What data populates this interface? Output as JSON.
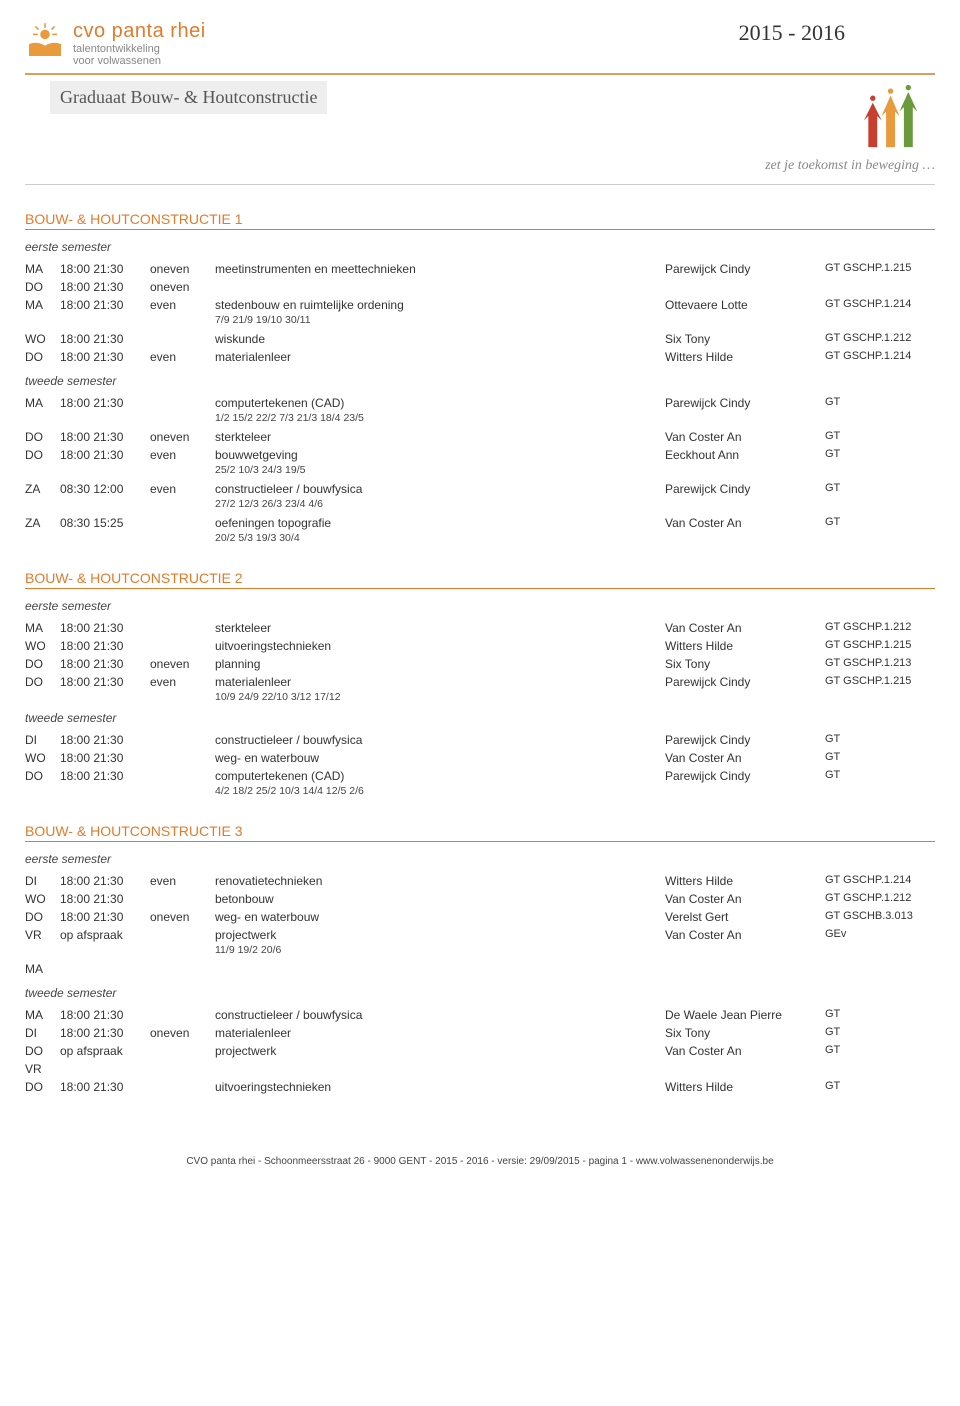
{
  "header": {
    "brand": "cvo panta rhei",
    "tag1": "talentontwikkeling",
    "tag2": "voor volwassenen",
    "year": "2015 - 2016",
    "course_title": "Graduaat Bouw- & Houtconstructie",
    "slogan": "zet je toekomst in beweging …"
  },
  "colors": {
    "orange": "#e17b2c",
    "grey": "#888"
  },
  "sections": [
    {
      "title": "BOUW- & HOUTCONSTRUCTIE 1",
      "semesters": [
        {
          "label": "eerste semester",
          "rows": [
            {
              "day": "MA",
              "time": "18:00 21:30",
              "parity": "oneven",
              "subject": "meetinstrumenten en meettechnieken",
              "teacher": "Parewijck Cindy",
              "code": "GT GSCHP.1.215"
            },
            {
              "day": "DO",
              "time": "18:00 21:30",
              "parity": "oneven",
              "subject": "",
              "teacher": "",
              "code": ""
            },
            {
              "day": "MA",
              "time": "18:00 21:30",
              "parity": "even",
              "subject": "stedenbouw en ruimtelijke ordening",
              "teacher": "Ottevaere Lotte",
              "code": "GT GSCHP.1.214",
              "dates": "7/9 21/9 19/10 30/11"
            },
            {
              "day": "WO",
              "time": "18:00 21:30",
              "parity": "",
              "subject": "wiskunde",
              "teacher": "Six Tony",
              "code": "GT GSCHP.1.212"
            },
            {
              "day": "DO",
              "time": "18:00 21:30",
              "parity": "even",
              "subject": "materialenleer",
              "teacher": "Witters Hilde",
              "code": "GT GSCHP.1.214"
            }
          ]
        },
        {
          "label": "tweede semester",
          "rows": [
            {
              "day": "MA",
              "time": "18:00 21:30",
              "parity": "",
              "subject": "computertekenen (CAD)",
              "teacher": "Parewijck Cindy",
              "code": "GT",
              "dates": "1/2 15/2 22/2 7/3 21/3 18/4 23/5"
            },
            {
              "day": "DO",
              "time": "18:00 21:30",
              "parity": "oneven",
              "subject": "sterkteleer",
              "teacher": "Van Coster An",
              "code": "GT"
            },
            {
              "day": "DO",
              "time": "18:00 21:30",
              "parity": "even",
              "subject": "bouwwetgeving",
              "teacher": "Eeckhout Ann",
              "code": "GT",
              "dates": "25/2 10/3 24/3 19/5"
            },
            {
              "day": "ZA",
              "time": "08:30 12:00",
              "parity": "even",
              "subject": "constructieleer / bouwfysica",
              "teacher": "Parewijck Cindy",
              "code": "GT",
              "dates": "27/2 12/3 26/3 23/4 4/6"
            },
            {
              "day": "ZA",
              "time": "08:30 15:25",
              "parity": "",
              "subject": "oefeningen topografie",
              "teacher": "Van Coster An",
              "code": "GT",
              "dates": "20/2 5/3 19/3 30/4"
            }
          ]
        }
      ]
    },
    {
      "title": "BOUW- & HOUTCONSTRUCTIE 2",
      "semesters": [
        {
          "label": "eerste semester",
          "rows": [
            {
              "day": "MA",
              "time": "18:00 21:30",
              "parity": "",
              "subject": "sterkteleer",
              "teacher": "Van Coster An",
              "code": "GT GSCHP.1.212"
            },
            {
              "day": "WO",
              "time": "18:00 21:30",
              "parity": "",
              "subject": "uitvoeringstechnieken",
              "teacher": "Witters Hilde",
              "code": "GT GSCHP.1.215"
            },
            {
              "day": "DO",
              "time": "18:00 21:30",
              "parity": "oneven",
              "subject": "planning",
              "teacher": "Six Tony",
              "code": "GT GSCHP.1.213"
            },
            {
              "day": "DO",
              "time": "18:00 21:30",
              "parity": "even",
              "subject": "materialenleer",
              "teacher": "Parewijck Cindy",
              "code": "GT GSCHP.1.215",
              "dates": "10/9 24/9 22/10 3/12 17/12"
            }
          ]
        },
        {
          "label": "tweede semester",
          "rows": [
            {
              "day": "DI",
              "time": "18:00 21:30",
              "parity": "",
              "subject": "constructieleer / bouwfysica",
              "teacher": "Parewijck Cindy",
              "code": "GT"
            },
            {
              "day": "WO",
              "time": "18:00 21:30",
              "parity": "",
              "subject": "weg- en waterbouw",
              "teacher": "Van Coster An",
              "code": "GT"
            },
            {
              "day": "DO",
              "time": "18:00 21:30",
              "parity": "",
              "subject": "computertekenen (CAD)",
              "teacher": "Parewijck Cindy",
              "code": "GT",
              "dates": "4/2 18/2 25/2 10/3 14/4 12/5 2/6"
            }
          ]
        }
      ]
    },
    {
      "title": "BOUW- & HOUTCONSTRUCTIE 3",
      "semesters": [
        {
          "label": "eerste semester",
          "rows": [
            {
              "day": "DI",
              "time": "18:00 21:30",
              "parity": "even",
              "subject": "renovatietechnieken",
              "teacher": "Witters Hilde",
              "code": "GT GSCHP.1.214"
            },
            {
              "day": "WO",
              "time": "18:00 21:30",
              "parity": "",
              "subject": "betonbouw",
              "teacher": "Van Coster An",
              "code": "GT GSCHP.1.212"
            },
            {
              "day": "DO",
              "time": "18:00 21:30",
              "parity": "oneven",
              "subject": "weg- en waterbouw",
              "teacher": "Verelst Gert",
              "code": "GT GSCHB.3.013"
            },
            {
              "day": "VR",
              "time": "op afspraak",
              "parity": "",
              "subject": "projectwerk",
              "teacher": "Van Coster An",
              "code": "GEv",
              "dates": "11/9 19/2 20/6"
            },
            {
              "day": "MA",
              "time": "",
              "parity": "",
              "subject": "",
              "teacher": "",
              "code": ""
            }
          ]
        },
        {
          "label": "tweede semester",
          "rows": [
            {
              "day": "MA",
              "time": "18:00 21:30",
              "parity": "",
              "subject": "constructieleer / bouwfysica",
              "teacher": "De Waele Jean Pierre",
              "code": "GT"
            },
            {
              "day": "DI",
              "time": "18:00 21:30",
              "parity": "oneven",
              "subject": "materialenleer",
              "teacher": "Six Tony",
              "code": "GT"
            },
            {
              "day": "DO",
              "time": "op afspraak",
              "parity": "",
              "subject": "projectwerk",
              "teacher": "Van Coster An",
              "code": "GT"
            },
            {
              "day": "VR",
              "time": "",
              "parity": "",
              "subject": "",
              "teacher": "",
              "code": ""
            },
            {
              "day": "DO",
              "time": "18:00 21:30",
              "parity": "",
              "subject": "uitvoeringstechnieken",
              "teacher": "Witters Hilde",
              "code": "GT"
            }
          ]
        }
      ]
    }
  ],
  "footer": "CVO panta rhei - Schoonmeersstraat 26 - 9000 GENT - 2015 - 2016 - versie: 29/09/2015 - pagina 1 - www.volwassenenonderwijs.be"
}
